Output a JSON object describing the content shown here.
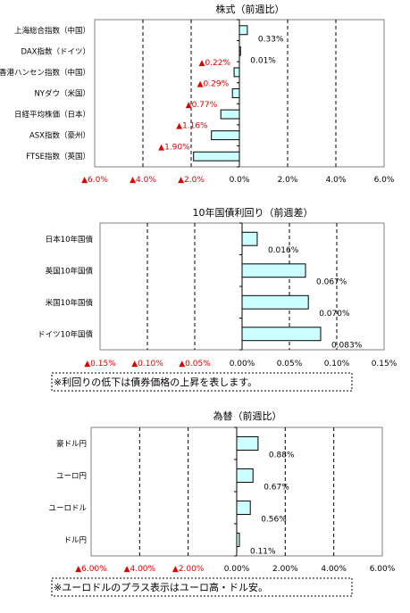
{
  "chart_data": [
    {
      "type": "bar",
      "orientation": "horizontal",
      "title": "株式（前週比）",
      "categories": [
        "上海総合指数（中国）",
        "DAX指数（ドイツ）",
        "香港ハンセン指数（中国）",
        "NYダウ（米国）",
        "日経平均株価（日本）",
        "ASX指数（豪州）",
        "FTSE指数（英国）"
      ],
      "values": [
        0.33,
        0.01,
        -0.22,
        -0.29,
        -0.77,
        -1.16,
        -1.9
      ],
      "value_labels": [
        "0.33%",
        "0.01%",
        "▲0.22%",
        "▲0.29%",
        "▲0.77%",
        "▲1.16%",
        "▲1.90%"
      ],
      "xlim": [
        -6,
        6
      ],
      "x_ticks": [
        "▲6.0%",
        "▲4.0%",
        "▲2.0%",
        "0.0%",
        "2.0%",
        "4.0%",
        "6.0%"
      ],
      "bar_color": "#ccffff",
      "negative_color": "#e00000"
    },
    {
      "type": "bar",
      "orientation": "horizontal",
      "title": "10年国債利回り（前週差）",
      "categories": [
        "日本10年国債",
        "英国10年国債",
        "米国10年国債",
        "ドイツ10年国債"
      ],
      "values": [
        0.016,
        0.067,
        0.07,
        0.083
      ],
      "value_labels": [
        "0.016%",
        "0.067%",
        "0.070%",
        "0.083%"
      ],
      "xlim": [
        -0.15,
        0.15
      ],
      "x_ticks": [
        "▲0.15%",
        "▲0.10%",
        "▲0.05%",
        "0.00%",
        "0.05%",
        "0.10%",
        "0.15%"
      ],
      "note": "※利回りの低下は債券価格の上昇を表します。",
      "bar_color": "#ccffff",
      "negative_color": "#e00000"
    },
    {
      "type": "bar",
      "orientation": "horizontal",
      "title": "為替（前週比）",
      "categories": [
        "豪ドル円",
        "ユーロ円",
        "ユーロドル",
        "ドル円"
      ],
      "values": [
        0.88,
        0.67,
        0.56,
        0.11
      ],
      "value_labels": [
        "0.88%",
        "0.67%",
        "0.56%",
        "0.11%"
      ],
      "xlim": [
        -6,
        6
      ],
      "x_ticks": [
        "▲6.00%",
        "▲4.00%",
        "▲2.00%",
        "0.00%",
        "2.00%",
        "4.00%",
        "6.00%"
      ],
      "note": "※ユーロドルのプラス表示はユーロ高・ドル安。",
      "bar_color": "#ccffff",
      "negative_color": "#e00000"
    }
  ]
}
